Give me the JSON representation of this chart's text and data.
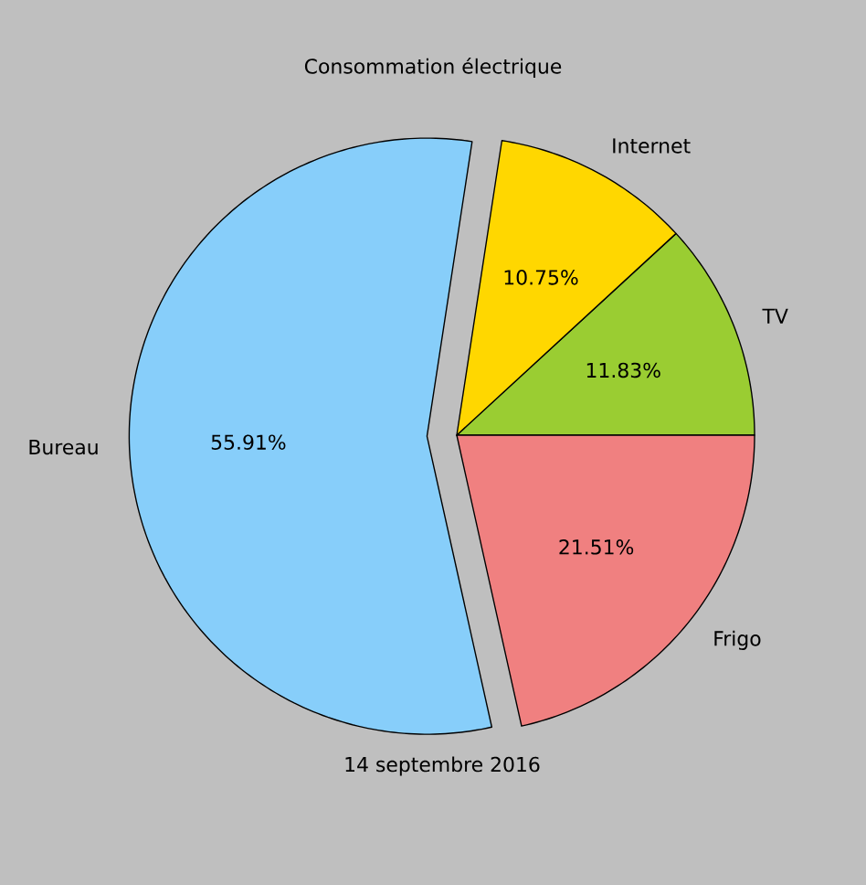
{
  "chart_data": {
    "type": "pie",
    "title": "Consommation électrique",
    "xlabel": "14 septembre 2016",
    "categories": [
      "TV",
      "Internet",
      "Bureau",
      "Frigo"
    ],
    "values": [
      11.83,
      10.75,
      55.91,
      21.51
    ],
    "value_labels": [
      "11.83%",
      "10.75%",
      "55.91%",
      "21.51%"
    ],
    "colors": [
      "#9acd32",
      "#ffd700",
      "#87cefa",
      "#f08080"
    ]
  }
}
